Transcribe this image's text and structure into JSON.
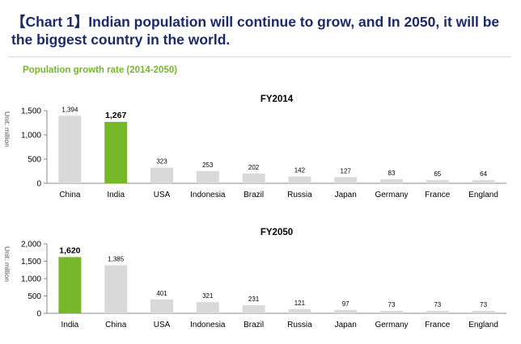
{
  "title": "【Chart 1】Indian population will continue to grow, and In 2050, it will be the biggest country in the world.",
  "subtitle": "Population growth rate (2014-2050)",
  "colors": {
    "title": "#1c2a6b",
    "subtitle": "#76b82a",
    "highlight": "#76b82a",
    "bar": "#d9d9d9"
  },
  "chart_data": [
    {
      "type": "bar",
      "title": "FY2014",
      "ylabel": "Unit: million",
      "ylim": [
        0,
        1500
      ],
      "yticks": [
        "0",
        "500",
        "1,000",
        "1,500"
      ],
      "ytick_values": [
        0,
        500,
        1000,
        1500
      ],
      "categories": [
        "China",
        "India",
        "USA",
        "Indonesia",
        "Brazil",
        "Russia",
        "Japan",
        "Germany",
        "France",
        "England"
      ],
      "values": [
        1394,
        1267,
        323,
        253,
        202,
        142,
        127,
        83,
        65,
        64
      ],
      "value_labels": [
        "1,394",
        "1,267",
        "323",
        "253",
        "202",
        "142",
        "127",
        "83",
        "65",
        "64"
      ],
      "highlight": "India"
    },
    {
      "type": "bar",
      "title": "FY2050",
      "ylabel": "Unit: million",
      "ylim": [
        0,
        2000
      ],
      "yticks": [
        "0",
        "500",
        "1,000",
        "1,500",
        "2,000"
      ],
      "ytick_values": [
        0,
        500,
        1000,
        1500,
        2000
      ],
      "categories": [
        "India",
        "China",
        "USA",
        "Indonesia",
        "Brazil",
        "Russia",
        "Japan",
        "Germany",
        "France",
        "England"
      ],
      "values": [
        1620,
        1385,
        401,
        321,
        231,
        121,
        97,
        73,
        73,
        73
      ],
      "value_labels": [
        "1,620",
        "1,385",
        "401",
        "321",
        "231",
        "121",
        "97",
        "73",
        "73",
        "73"
      ],
      "highlight": "India"
    }
  ]
}
